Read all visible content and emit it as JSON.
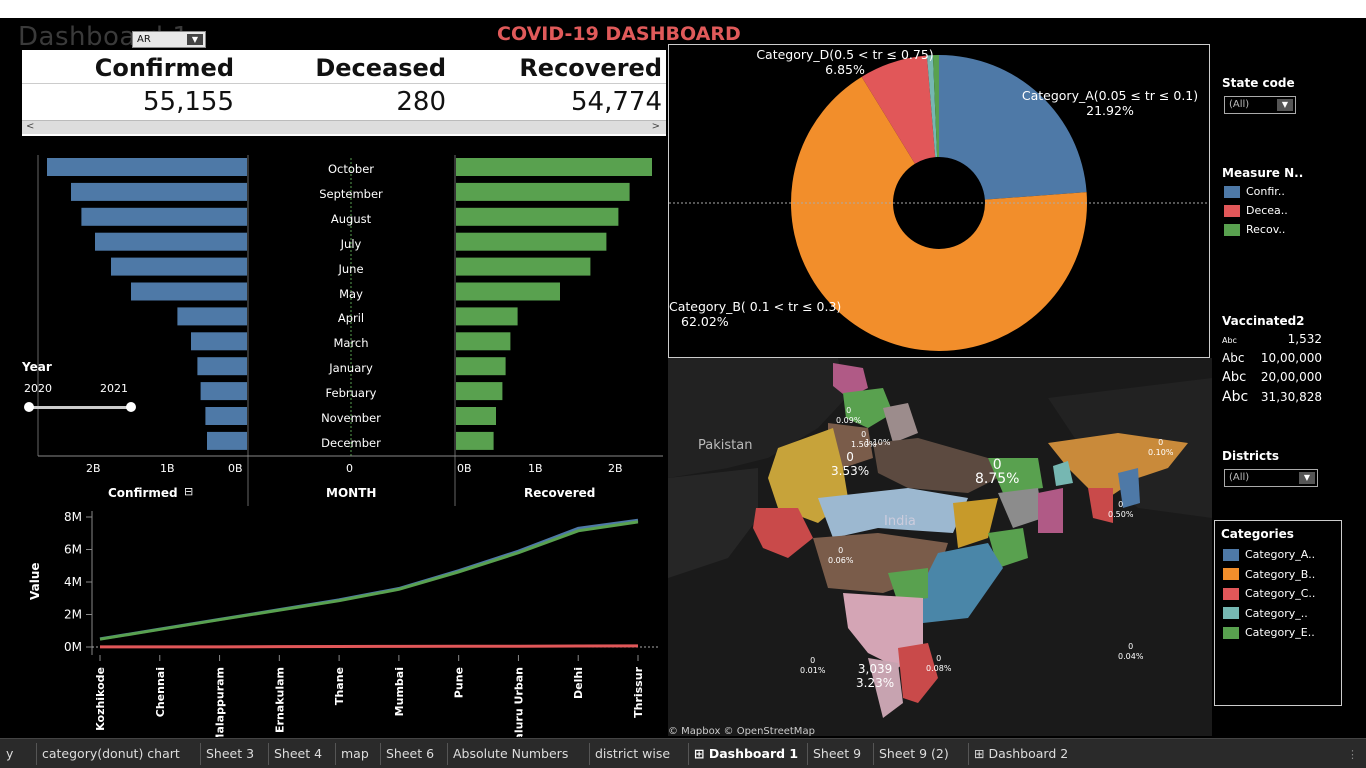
{
  "header": {
    "dashboard_title": "Dashboard 1",
    "state_filter_value": "AR",
    "main_title": "COVID-19 DASHBOARD"
  },
  "kpi": {
    "confirmed_label": "Confirmed",
    "deceased_label": "Deceased",
    "recovered_label": "Recovered",
    "confirmed_value": "55,155",
    "deceased_value": "280",
    "recovered_value": "54,774"
  },
  "sidebar": {
    "state_code_label": "State code",
    "state_code_value": "(All)",
    "measure_label": "Measure N..",
    "measures": [
      {
        "label": "Confir..",
        "color": "#4e79a7"
      },
      {
        "label": "Decea..",
        "color": "#e15759"
      },
      {
        "label": "Recov..",
        "color": "#59a14f"
      }
    ],
    "vaccinated_label": "Vaccinated2",
    "vaccinated_items": [
      {
        "abc": "Abc",
        "value": "1,532"
      },
      {
        "abc": "Abc",
        "value": "10,00,000"
      },
      {
        "abc": "Abc",
        "value": "20,00,000"
      },
      {
        "abc": "Abc",
        "value": "31,30,828"
      }
    ],
    "districts_label": "Districts",
    "districts_value": "(All)",
    "categories_label": "Categories",
    "categories": [
      {
        "label": "Category_A..",
        "color": "#4e79a7"
      },
      {
        "label": "Category_B..",
        "color": "#f28e2b"
      },
      {
        "label": "Category_C..",
        "color": "#e15759"
      },
      {
        "label": "Category_..",
        "color": "#76b7b2"
      },
      {
        "label": "Category_E..",
        "color": "#59a14f"
      }
    ]
  },
  "year_filter": {
    "label": "Year",
    "min": "2020",
    "max": "2021"
  },
  "map": {
    "country_label": "Pakistan",
    "india_label": "India",
    "attribution": "© Mapbox © OpenStreetMap",
    "labels": [
      {
        "top": "0",
        "bottom": "3.53%"
      },
      {
        "top": "0",
        "bottom": "8.75%"
      },
      {
        "top": "3,039",
        "bottom": "3.23%"
      },
      {
        "top": "0",
        "bottom": "1.50%"
      },
      {
        "top": "",
        "bottom": "1.10%"
      },
      {
        "top": "0",
        "bottom": "0.09%"
      },
      {
        "top": "0",
        "bottom": "0.10%"
      },
      {
        "top": "0",
        "bottom": "0.50%"
      },
      {
        "top": "0",
        "bottom": "0.06%"
      },
      {
        "top": "0",
        "bottom": "0.01%"
      },
      {
        "top": "0",
        "bottom": "0.08%"
      },
      {
        "top": "0",
        "bottom": "0.04%"
      }
    ]
  },
  "tabs": [
    {
      "label": "y"
    },
    {
      "label": "category(donut) chart"
    },
    {
      "label": "Sheet 3"
    },
    {
      "label": "Sheet 4"
    },
    {
      "label": "map"
    },
    {
      "label": "Sheet 6"
    },
    {
      "label": "Absolute Numbers"
    },
    {
      "label": "district wise"
    },
    {
      "label": "Dashboard 1",
      "selected": true
    },
    {
      "label": "Sheet 9"
    },
    {
      "label": "Sheet 9 (2)"
    },
    {
      "label": "Dashboard 2"
    }
  ],
  "chart_data": [
    {
      "type": "bar",
      "orientation": "horizontal-left",
      "categories": [
        "October",
        "September",
        "August",
        "July",
        "June",
        "May",
        "April",
        "March",
        "January",
        "February",
        "November",
        "December"
      ],
      "values": [
        2.5,
        2.2,
        2.07,
        1.9,
        1.7,
        1.45,
        0.87,
        0.7,
        0.62,
        0.58,
        0.52,
        0.5
      ],
      "xlabel": "Confirmed",
      "ticks": [
        "2B",
        "1B",
        "0B"
      ],
      "xlim": [
        0,
        2.5
      ],
      "color": "#4e79a7"
    },
    {
      "type": "table",
      "xlabel": "MONTH",
      "tick": "0"
    },
    {
      "type": "bar",
      "orientation": "horizontal-right",
      "categories": [
        "October",
        "September",
        "August",
        "July",
        "June",
        "May",
        "April",
        "March",
        "January",
        "February",
        "November",
        "December"
      ],
      "values": [
        2.45,
        2.17,
        2.03,
        1.88,
        1.68,
        1.3,
        0.77,
        0.68,
        0.62,
        0.58,
        0.5,
        0.47
      ],
      "xlabel": "Recovered",
      "ticks": [
        "0B",
        "1B",
        "2B"
      ],
      "xlim": [
        0,
        2.5
      ],
      "color": "#59a14f"
    },
    {
      "type": "line",
      "x": [
        "Kozhikode",
        "Chennai",
        "Malappuram",
        "Ernakulam",
        "Thane",
        "Mumbai",
        "Pune",
        "Bengaluru Urban",
        "Delhi",
        "Thrissur"
      ],
      "series": [
        {
          "name": "Confirmed",
          "color": "#4e79a7",
          "values": [
            0.5,
            1.1,
            1.7,
            2.3,
            2.9,
            3.6,
            4.7,
            5.9,
            7.3,
            7.8
          ]
        },
        {
          "name": "Recovered",
          "color": "#59a14f",
          "values": [
            0.48,
            1.08,
            1.68,
            2.27,
            2.85,
            3.55,
            4.62,
            5.8,
            7.15,
            7.7
          ]
        },
        {
          "name": "Deceased",
          "color": "#e15759",
          "values": [
            0.01,
            0.01,
            0.01,
            0.02,
            0.03,
            0.04,
            0.05,
            0.05,
            0.06,
            0.07
          ]
        }
      ],
      "ylabel": "Value",
      "yticks": [
        "8M",
        "6M",
        "4M",
        "2M",
        "0M"
      ],
      "ylim": [
        0,
        8
      ]
    },
    {
      "type": "pie",
      "donut": true,
      "slices": [
        {
          "label": "Category_A(0.05 ≤ tr ≤ 0.1)",
          "pct": "21.92%",
          "value": 21.92,
          "color": "#4e79a7"
        },
        {
          "label": "Category_B( 0.1 < tr ≤ 0.3)",
          "pct": "62.02%",
          "value": 62.02,
          "color": "#f28e2b"
        },
        {
          "label": "Category_D(0.5 < tr ≤ 0.75)",
          "pct": "6.85%",
          "value": 6.85,
          "color": "#e15759"
        },
        {
          "label": "",
          "pct": "",
          "value": 0.6,
          "color": "#76b7b2"
        },
        {
          "label": "",
          "pct": "",
          "value": 0.6,
          "color": "#59a14f"
        }
      ]
    }
  ]
}
